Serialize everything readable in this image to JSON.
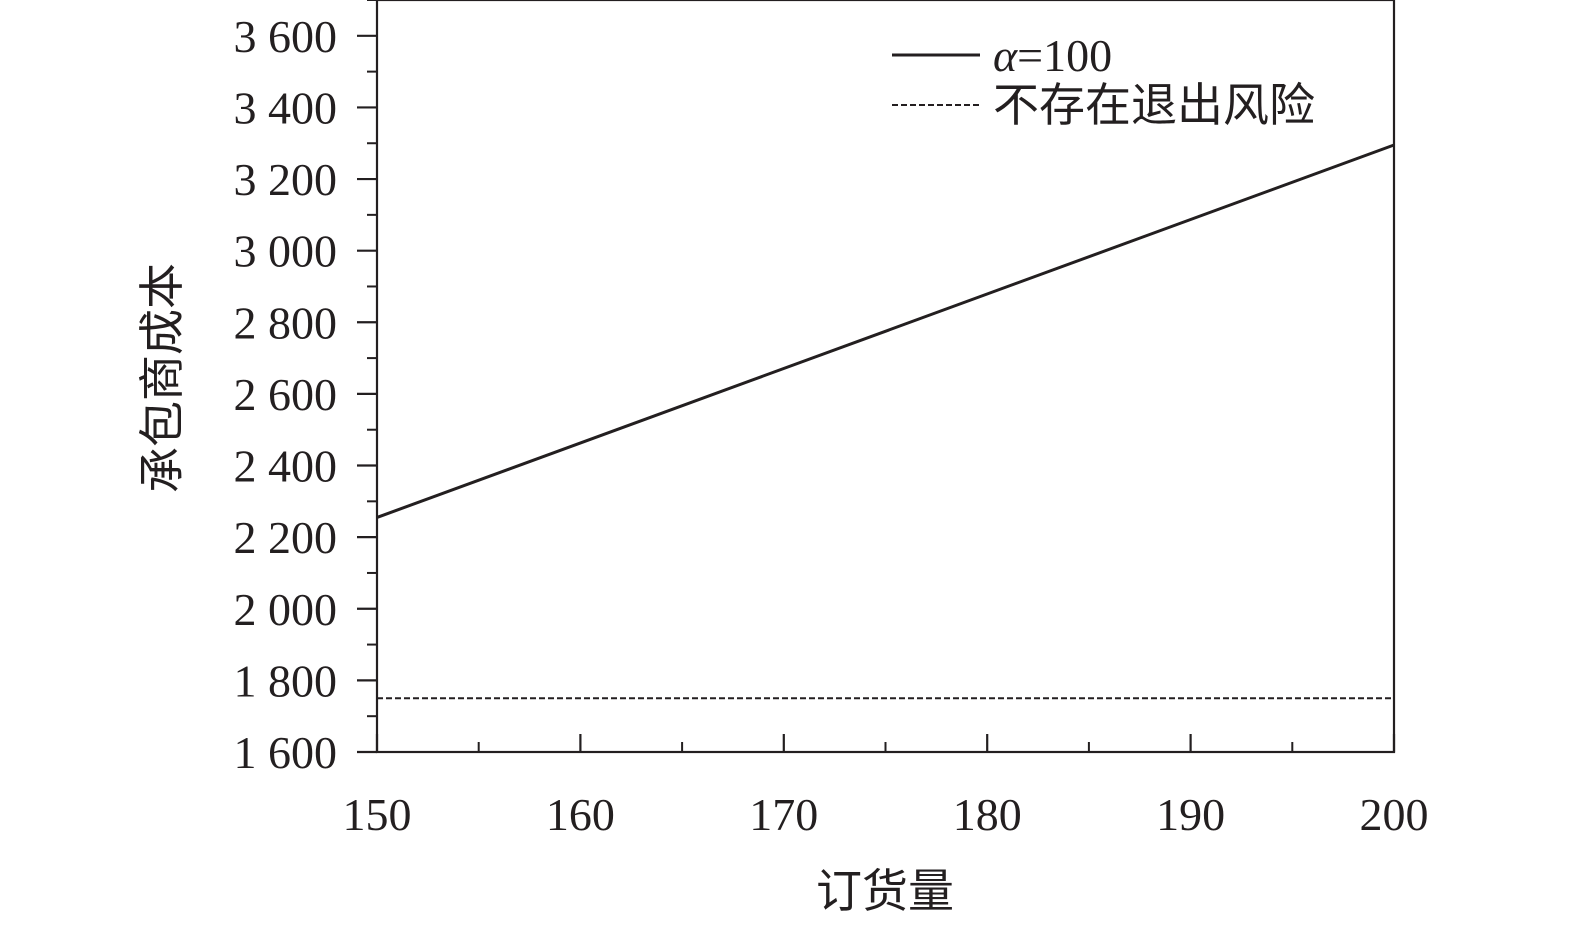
{
  "chart_data": {
    "type": "line",
    "xlabel": "订货量",
    "ylabel": "承包商成本",
    "xlim": [
      150,
      200
    ],
    "ylim": [
      1600,
      3700
    ],
    "x_ticks": [
      150,
      160,
      170,
      180,
      190,
      200
    ],
    "x_tick_labels": [
      "150",
      "160",
      "170",
      "180",
      "190",
      "200"
    ],
    "x_minor_step": 5,
    "y_ticks": [
      1600,
      1800,
      2000,
      2200,
      2400,
      2600,
      2800,
      3000,
      3200,
      3400,
      3600
    ],
    "y_tick_labels": [
      "1 600",
      "1 800",
      "2 000",
      "2 200",
      "2 400",
      "2 600",
      "2 800",
      "3 000",
      "3 200",
      "3 400",
      "3 600"
    ],
    "y_minor_step": 100,
    "grid": false,
    "legend_position": "top-right",
    "series": [
      {
        "name": "α=100",
        "label_symbol": "α",
        "label_value": "=100",
        "style": "solid",
        "color": "#231f20",
        "x": [
          150,
          200
        ],
        "y": [
          2255,
          3295
        ]
      },
      {
        "name": "不存在退出风险",
        "style": "dashed",
        "color": "#231f20",
        "x": [
          150,
          200
        ],
        "y": [
          1750,
          1750
        ]
      }
    ]
  }
}
